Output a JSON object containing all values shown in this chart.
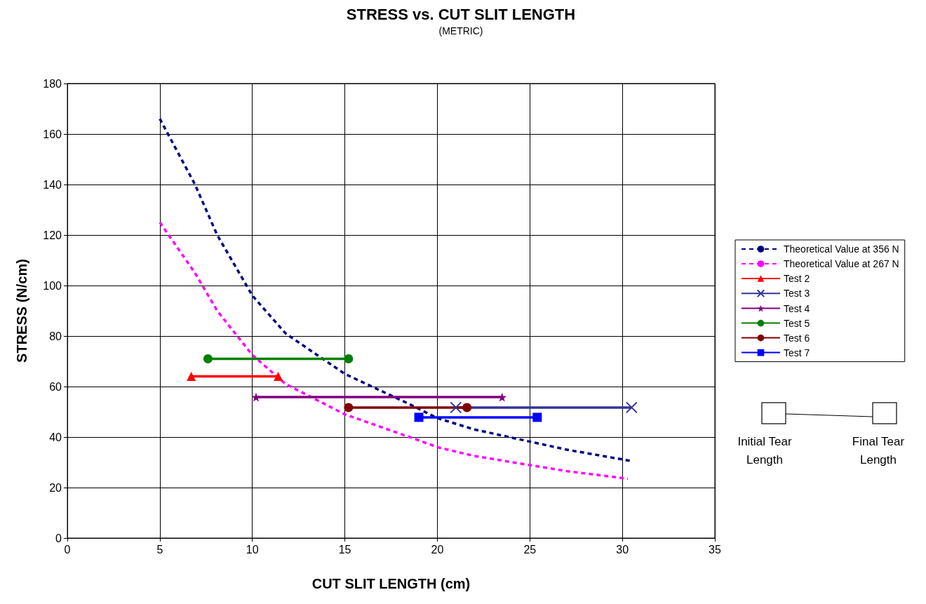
{
  "chart_data": {
    "type": "line",
    "title": "STRESS vs. CUT SLIT LENGTH",
    "subtitle": "(METRIC)",
    "xlabel": "CUT SLIT LENGTH (cm)",
    "ylabel": "STRESS (N/cm)",
    "xlim": [
      0,
      35
    ],
    "xticks": [
      0,
      5,
      10,
      15,
      20,
      25,
      30,
      35
    ],
    "ylim": [
      0,
      180
    ],
    "yticks": [
      0,
      20,
      40,
      60,
      80,
      100,
      120,
      140,
      160,
      180
    ],
    "grid": true,
    "legend": "right",
    "annotations": [
      "Initial Tear Length",
      "Final Tear Length"
    ],
    "series": [
      {
        "name": "Theoretical Value at 356 N",
        "color": "#000080",
        "marker": "none",
        "line_style": "dashed",
        "x": [
          5,
          6.9,
          8.1,
          10,
          11.8,
          15,
          18.5,
          20,
          22,
          24.5,
          27,
          30.5
        ],
        "values": [
          166,
          140,
          120,
          96,
          81,
          65,
          53,
          47.5,
          43,
          39,
          35,
          30.5
        ]
      },
      {
        "name": "Theoretical Value at 267 N",
        "color": "#ff00ff",
        "marker": "none",
        "line_style": "dashed",
        "x": [
          5,
          6.9,
          8.1,
          10,
          11.8,
          15,
          18.5,
          20,
          22,
          24.5,
          27,
          30.3
        ],
        "values": [
          125,
          105,
          90,
          72.5,
          61,
          49,
          40,
          36,
          32.5,
          29.5,
          26.5,
          23.5
        ]
      },
      {
        "name": "Test 2",
        "color": "#ff0000",
        "marker": "triangle",
        "line_style": "solid",
        "x": [
          6.7,
          11.4
        ],
        "values": [
          64,
          64
        ]
      },
      {
        "name": "Test 3",
        "color": "#333399",
        "marker": "cross",
        "line_style": "solid",
        "x": [
          21,
          30.5
        ],
        "values": [
          51.7,
          51.7
        ]
      },
      {
        "name": "Test 4",
        "color": "#800080",
        "marker": "star",
        "line_style": "solid",
        "x": [
          10.2,
          23.5
        ],
        "values": [
          55.8,
          55.8
        ]
      },
      {
        "name": "Test 5",
        "color": "#008000",
        "marker": "circle",
        "line_style": "solid",
        "x": [
          7.6,
          15.2
        ],
        "values": [
          71,
          71
        ]
      },
      {
        "name": "Test 6",
        "color": "#800000",
        "marker": "circle",
        "line_style": "solid",
        "x": [
          15.2,
          21.6
        ],
        "values": [
          51.7,
          51.7
        ]
      },
      {
        "name": "Test 7",
        "color": "#0000ff",
        "marker": "square",
        "line_style": "solid",
        "x": [
          19,
          25.4
        ],
        "values": [
          47.8,
          47.8
        ]
      }
    ]
  }
}
